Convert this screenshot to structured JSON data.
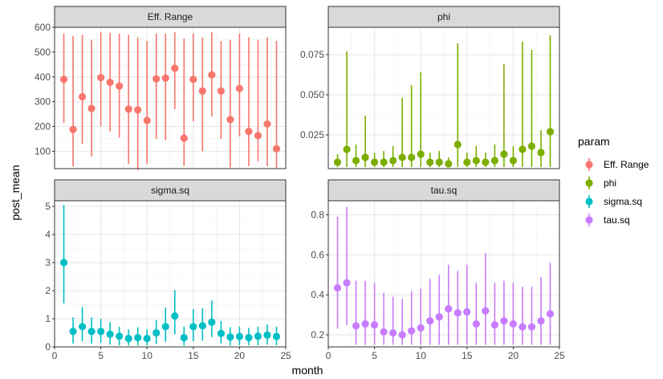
{
  "chart_data": {
    "type": "scatter",
    "layout": "facet-grid 2x2, free y scales, shared x",
    "xlabel": "month",
    "ylabel": "post_mean",
    "x_ticks": [
      0,
      5,
      10,
      15,
      20,
      25
    ],
    "xlim": [
      0,
      25
    ],
    "grid": true,
    "legend": {
      "title": "param",
      "placement": "right",
      "entries": [
        {
          "name": "Eff. Range",
          "color": "#F8766D"
        },
        {
          "name": "phi",
          "color": "#7CAE00"
        },
        {
          "name": "sigma.sq",
          "color": "#00BFC4"
        },
        {
          "name": "tau.sq",
          "color": "#C77CFF"
        }
      ]
    },
    "x": [
      1,
      2,
      3,
      4,
      5,
      6,
      7,
      8,
      9,
      10,
      11,
      12,
      13,
      14,
      15,
      16,
      17,
      18,
      19,
      20,
      21,
      22,
      23,
      24
    ],
    "panels": [
      {
        "strip": "Eff. Range",
        "color": "#F8766D",
        "ylim": [
          30,
          600
        ],
        "y_ticks": [
          100,
          200,
          300,
          400,
          500,
          600
        ],
        "y_tick_labels": [
          "100",
          "200",
          "300",
          "400",
          "500",
          "600"
        ],
        "mean": [
          390,
          188,
          320,
          273,
          397,
          378,
          363,
          270,
          267,
          224,
          392,
          395,
          435,
          153,
          390,
          343,
          408,
          343,
          228,
          353,
          180,
          163,
          210,
          110
        ],
        "lower": [
          215,
          38,
          130,
          78,
          200,
          180,
          155,
          50,
          25,
          50,
          150,
          145,
          270,
          40,
          220,
          100,
          240,
          150,
          35,
          160,
          40,
          60,
          40,
          30
        ],
        "upper": [
          575,
          565,
          570,
          550,
          580,
          578,
          575,
          570,
          560,
          545,
          575,
          575,
          580,
          555,
          575,
          560,
          580,
          545,
          550,
          575,
          560,
          550,
          560,
          545
        ]
      },
      {
        "strip": "phi",
        "color": "#7CAE00",
        "ylim": [
          0.004,
          0.092
        ],
        "y_ticks": [
          0.025,
          0.05,
          0.075
        ],
        "y_tick_labels": [
          "0.025",
          "0.050",
          "0.075"
        ],
        "mean": [
          0.008,
          0.016,
          0.009,
          0.011,
          0.008,
          0.008,
          0.009,
          0.011,
          0.011,
          0.013,
          0.008,
          0.008,
          0.007,
          0.019,
          0.008,
          0.009,
          0.008,
          0.009,
          0.013,
          0.009,
          0.016,
          0.018,
          0.014,
          0.027
        ],
        "lower": [
          0.005,
          0.005,
          0.005,
          0.005,
          0.005,
          0.005,
          0.005,
          0.005,
          0.005,
          0.005,
          0.005,
          0.005,
          0.005,
          0.005,
          0.005,
          0.005,
          0.005,
          0.005,
          0.005,
          0.005,
          0.005,
          0.005,
          0.005,
          0.005
        ],
        "upper": [
          0.013,
          0.077,
          0.019,
          0.037,
          0.014,
          0.015,
          0.018,
          0.048,
          0.056,
          0.064,
          0.014,
          0.015,
          0.011,
          0.082,
          0.014,
          0.018,
          0.014,
          0.019,
          0.069,
          0.018,
          0.083,
          0.078,
          0.028,
          0.087
        ]
      },
      {
        "strip": "sigma.sq",
        "color": "#00BFC4",
        "ylim": [
          0,
          5.2
        ],
        "y_ticks": [
          0,
          1,
          2,
          3,
          4,
          5
        ],
        "y_tick_labels": [
          "0",
          "1",
          "2",
          "3",
          "4",
          "5"
        ],
        "mean": [
          3.0,
          0.55,
          0.72,
          0.55,
          0.55,
          0.45,
          0.38,
          0.3,
          0.33,
          0.3,
          0.5,
          0.72,
          1.1,
          0.33,
          0.72,
          0.75,
          0.88,
          0.48,
          0.35,
          0.37,
          0.33,
          0.38,
          0.42,
          0.37
        ],
        "lower": [
          1.55,
          0.12,
          0.2,
          0.12,
          0.15,
          0.08,
          0.05,
          0.05,
          0.05,
          0.05,
          0.1,
          0.18,
          0.45,
          0.05,
          0.2,
          0.22,
          0.35,
          0.12,
          0.05,
          0.06,
          0.06,
          0.06,
          0.08,
          0.06
        ],
        "upper": [
          5.05,
          1.05,
          1.42,
          1.05,
          1.0,
          0.88,
          0.72,
          0.62,
          0.7,
          0.62,
          0.95,
          1.4,
          2.02,
          0.72,
          1.35,
          1.38,
          1.65,
          0.92,
          0.7,
          0.72,
          0.68,
          0.72,
          0.8,
          0.72
        ]
      },
      {
        "strip": "tau.sq",
        "color": "#C77CFF",
        "ylim": [
          0.14,
          0.87
        ],
        "y_ticks": [
          0.2,
          0.4,
          0.6,
          0.8
        ],
        "y_tick_labels": [
          "0.2",
          "0.4",
          "0.6",
          "0.8"
        ],
        "mean": [
          0.435,
          0.46,
          0.245,
          0.255,
          0.25,
          0.215,
          0.21,
          0.2,
          0.22,
          0.235,
          0.27,
          0.29,
          0.33,
          0.31,
          0.315,
          0.255,
          0.32,
          0.25,
          0.27,
          0.255,
          0.24,
          0.24,
          0.27,
          0.305
        ],
        "lower": [
          0.23,
          0.25,
          0.15,
          0.15,
          0.15,
          0.15,
          0.15,
          0.15,
          0.15,
          0.15,
          0.15,
          0.15,
          0.15,
          0.15,
          0.15,
          0.15,
          0.15,
          0.15,
          0.15,
          0.15,
          0.15,
          0.15,
          0.15,
          0.15
        ],
        "upper": [
          0.79,
          0.84,
          0.47,
          0.47,
          0.46,
          0.41,
          0.39,
          0.38,
          0.42,
          0.43,
          0.48,
          0.5,
          0.55,
          0.52,
          0.55,
          0.46,
          0.61,
          0.46,
          0.47,
          0.46,
          0.44,
          0.44,
          0.49,
          0.56
        ]
      }
    ]
  }
}
